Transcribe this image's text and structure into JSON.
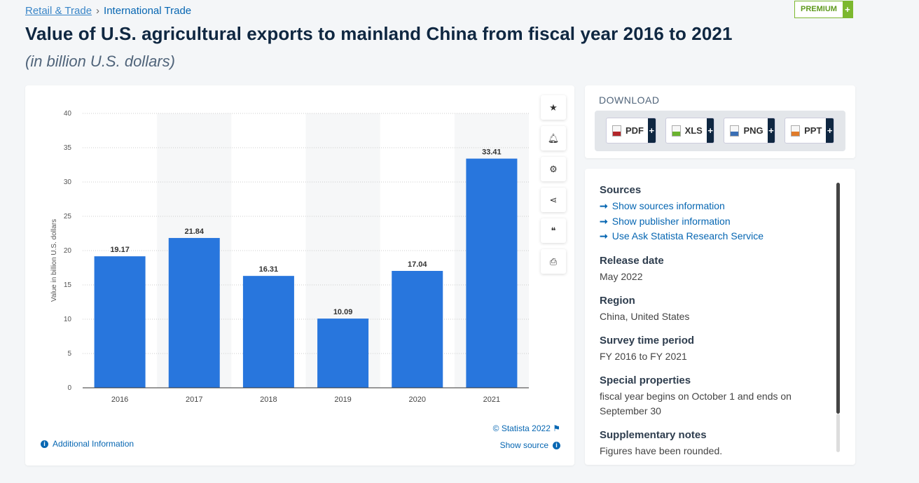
{
  "breadcrumb": {
    "parent": "Retail & Trade",
    "current": "International Trade"
  },
  "premium": {
    "label": "PREMIUM",
    "plus": "+"
  },
  "title": "Value of U.S. agricultural exports to mainland China from fiscal year 2016 to 2021",
  "subtitle": "(in billion U.S. dollars)",
  "chart_data": {
    "type": "bar",
    "categories": [
      "2016",
      "2017",
      "2018",
      "2019",
      "2020",
      "2021"
    ],
    "values": [
      19.17,
      21.84,
      16.31,
      10.09,
      17.04,
      33.41
    ],
    "value_labels": [
      "19.17",
      "21.84",
      "16.31",
      "10.09",
      "17.04",
      "33.41"
    ],
    "ylabel": "Value in billion U.S. dollars",
    "xlabel": "",
    "ylim": [
      0,
      40
    ],
    "yticks": [
      "0",
      "5",
      "10",
      "15",
      "20",
      "25",
      "30",
      "35",
      "40"
    ],
    "grid": true,
    "color": "#2876dd"
  },
  "chart_footer": {
    "copyright": "© Statista 2022",
    "additional_info": "Additional Information",
    "show_source": "Show source"
  },
  "tools": [
    "star-icon",
    "bell-icon",
    "gear-icon",
    "share-icon",
    "quote-icon",
    "print-icon"
  ],
  "download": {
    "heading": "DOWNLOAD",
    "buttons": [
      {
        "label": "PDF",
        "color": "#b3262a"
      },
      {
        "label": "XLS",
        "color": "#6bb32e"
      },
      {
        "label": "PNG",
        "color": "#3a6fb5"
      },
      {
        "label": "PPT",
        "color": "#e07b2a"
      }
    ],
    "plus": "+"
  },
  "info": {
    "sources_heading": "Sources",
    "links": [
      "Show sources information",
      "Show publisher information",
      "Use Ask Statista Research Service"
    ],
    "arrow": "➞",
    "sections": [
      {
        "heading": "Release date",
        "text": "May 2022"
      },
      {
        "heading": "Region",
        "text": "China, United States"
      },
      {
        "heading": "Survey time period",
        "text": "FY 2016 to FY 2021"
      },
      {
        "heading": "Special properties",
        "text": "fiscal year begins on October 1 and ends on September 30"
      },
      {
        "heading": "Supplementary notes",
        "text": "Figures have been rounded."
      }
    ]
  }
}
